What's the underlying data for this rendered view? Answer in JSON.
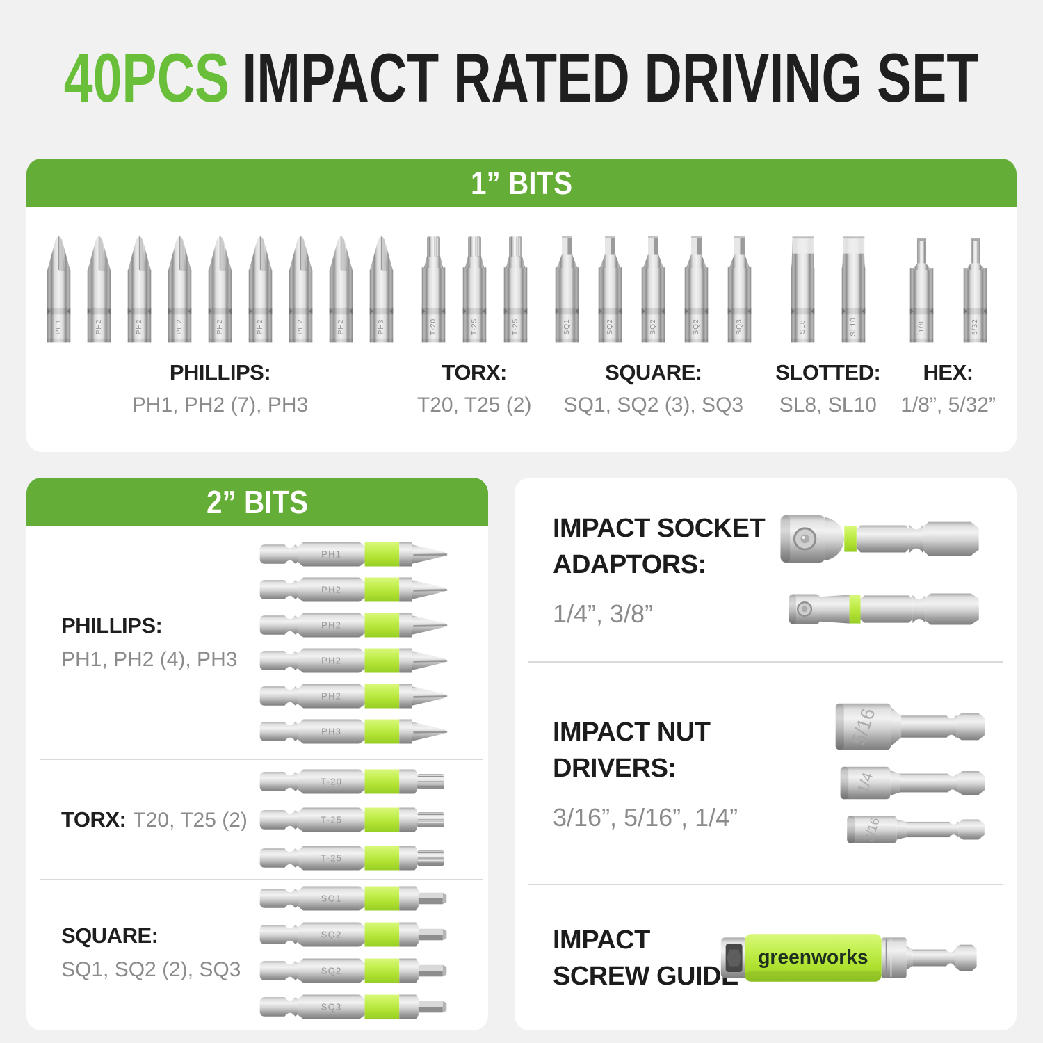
{
  "title": {
    "highlight": "40PCS",
    "rest": "IMPACT RATED DRIVING SET"
  },
  "cards": {
    "one_inch": {
      "header": "1” BITS",
      "groups": [
        {
          "name": "PHILLIPS:",
          "values": "PH1, PH2 (7), PH3",
          "tip": "phillips",
          "bits": [
            "PH1",
            "PH2",
            "PH2",
            "PH2",
            "PH2",
            "PH2",
            "PH2",
            "PH2",
            "PH3"
          ]
        },
        {
          "name": "TORX:",
          "values": "T20, T25 (2)",
          "tip": "torx",
          "bits": [
            "T-20",
            "T-25",
            "T-25"
          ]
        },
        {
          "name": "SQUARE:",
          "values": "SQ1, SQ2 (3), SQ3",
          "tip": "square",
          "bits": [
            "SQ1",
            "SQ2",
            "SQ2",
            "SQ2",
            "SQ3"
          ]
        },
        {
          "name": "SLOTTED:",
          "values": "SL8, SL10",
          "tip": "slotted",
          "bits": [
            "SL8",
            "SL10"
          ]
        },
        {
          "name": "HEX:",
          "values": "1/8”, 5/32”",
          "tip": "hexrod",
          "bits": [
            "1/8",
            "5/32"
          ]
        }
      ]
    },
    "two_inch": {
      "header": "2” BITS",
      "sections": [
        {
          "name": "PHILLIPS:",
          "values": "PH1, PH2 (4), PH3",
          "layout": "stacked",
          "tip": "phillips",
          "bits": [
            "PH1",
            "PH2",
            "PH2",
            "PH2",
            "PH2",
            "PH3"
          ]
        },
        {
          "name": "TORX:",
          "values": "T20, T25 (2)",
          "layout": "inline",
          "tip": "torx",
          "bits": [
            "T-20",
            "T-25",
            "T-25"
          ]
        },
        {
          "name": "SQUARE:",
          "values": "SQ1, SQ2 (2), SQ3",
          "layout": "stacked",
          "tip": "square",
          "bits": [
            "SQ1",
            "SQ2",
            "SQ2",
            "SQ3"
          ]
        }
      ]
    },
    "accessories": {
      "socket_adaptors": {
        "title_line1": "IMPACT SOCKET",
        "title_line2": "ADAPTORS:",
        "values": "1/4”, 3/8”",
        "items": [
          {
            "size": "3/8",
            "variant": "large"
          },
          {
            "size": "1/4",
            "variant": "small"
          }
        ]
      },
      "nut_drivers": {
        "title_line1": "IMPACT NUT",
        "title_line2": "DRIVERS:",
        "values": "3/16”, 5/16”, 1/4”",
        "items": [
          {
            "size": "5/16",
            "variant": "large"
          },
          {
            "size": "1/4",
            "variant": "med"
          },
          {
            "size": "3/16",
            "variant": "small"
          }
        ]
      },
      "screw_guide": {
        "title_line1": "IMPACT",
        "title_line2": "SCREW GUIDE",
        "brand": "greenworks"
      }
    }
  },
  "colors": {
    "title_green": "#6abf3a",
    "header_green": "#64ad37",
    "lime_band": "#c0ee4e",
    "text_dark": "#1e1e1e",
    "text_gray": "#8b8b8b",
    "card_bg": "#ffffff",
    "page_bg": "#f1f1f1",
    "brand_text": "#1f301f"
  }
}
